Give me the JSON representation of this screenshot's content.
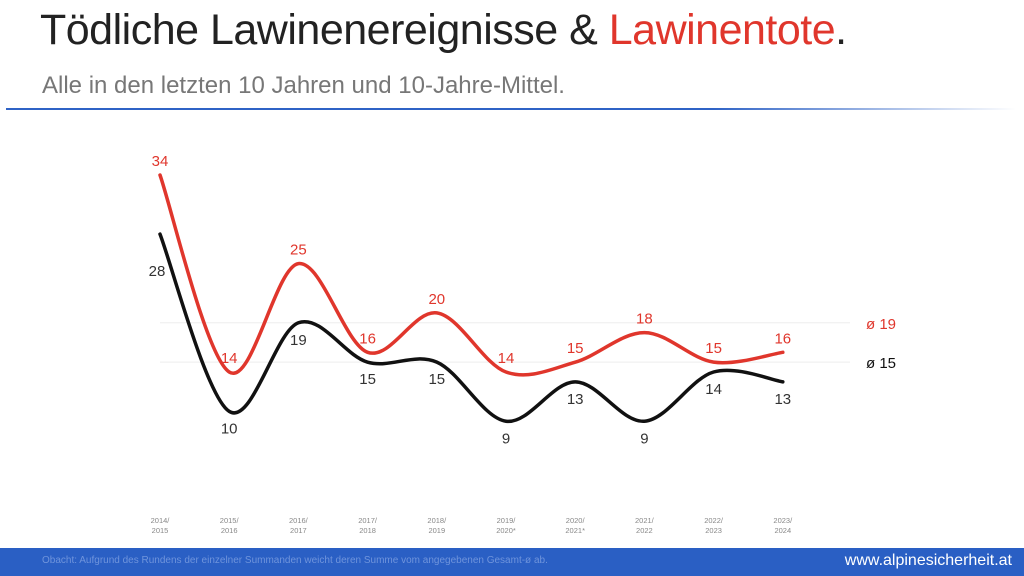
{
  "header": {
    "title_part1": "Tödliche Lawinenereignisse & ",
    "title_part2": "Lawinentote",
    "title_end": ".",
    "subtitle": "Alle in den letzten 10 Jahren und 10-Jahre-Mittel."
  },
  "footer": {
    "note": "Obacht: Aufgrund des Rundens der einzelner Summanden weicht deren Summe vom angegebenen Gesamt-ø ab.",
    "site": "www.alpinesicherheit.at"
  },
  "chart_data": {
    "type": "line",
    "categories": [
      [
        "2014/",
        "2015"
      ],
      [
        "2015/",
        "2016"
      ],
      [
        "2016/",
        "2017"
      ],
      [
        "2017/",
        "2018"
      ],
      [
        "2018/",
        "2019"
      ],
      [
        "2019/",
        "2020*"
      ],
      [
        "2020/",
        "2021*"
      ],
      [
        "2021/",
        "2022"
      ],
      [
        "2022/",
        "2023"
      ],
      [
        "2023/",
        "2024"
      ]
    ],
    "series": [
      {
        "color": "#e0362c",
        "values": [
          34,
          14,
          25,
          16,
          20,
          14,
          15,
          18,
          15,
          16
        ],
        "average": 19,
        "average_label": "ø 19"
      },
      {
        "color": "#111111",
        "values": [
          28,
          10,
          19,
          15,
          15,
          9,
          13,
          9,
          14,
          13
        ],
        "average": 15,
        "average_label": "ø 15"
      }
    ],
    "grid": false
  }
}
